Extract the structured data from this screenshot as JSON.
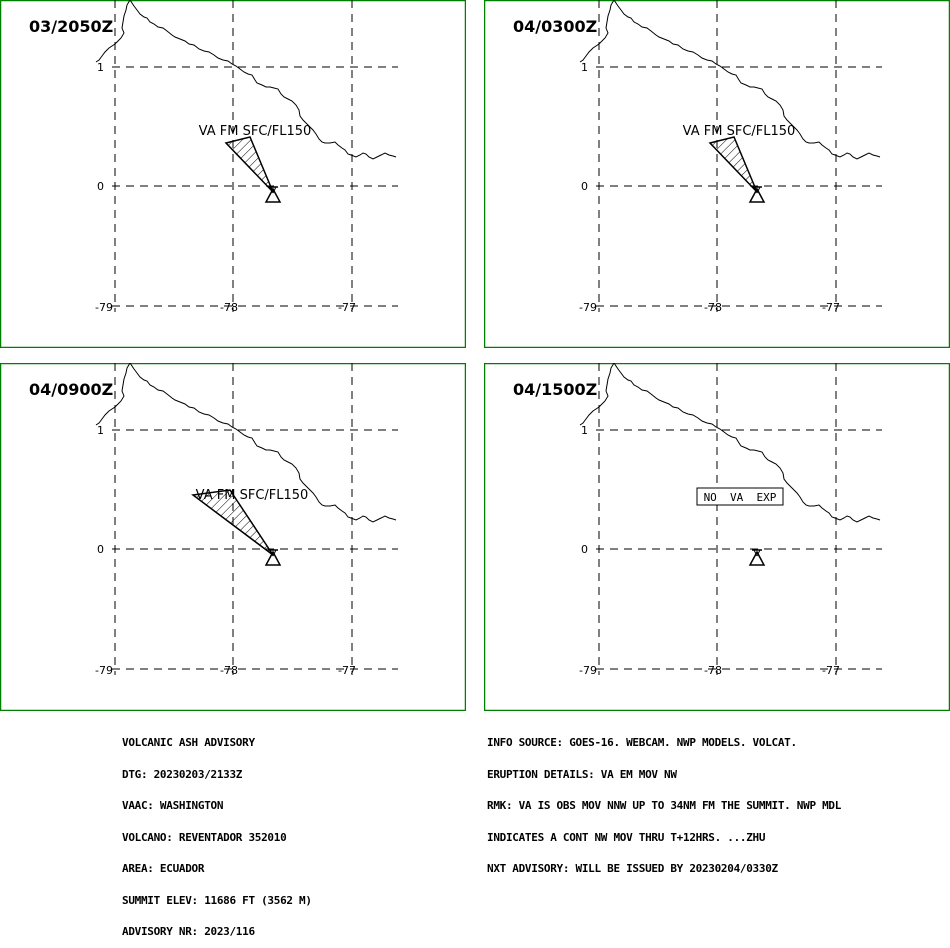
{
  "panels": [
    {
      "time": "03/2050Z",
      "label": "VA FM SFC/FL150",
      "plume": "small"
    },
    {
      "time": "04/0300Z",
      "label": "VA FM SFC/FL150",
      "plume": "small"
    },
    {
      "time": "04/0900Z",
      "label": "VA FM SFC/FL150",
      "plume": "large"
    },
    {
      "time": "04/1500Z",
      "label": "NO VA EXP",
      "plume": "none"
    }
  ],
  "axis_labels": {
    "lat_1": "1",
    "lat_0": "0",
    "lon_w": "-79",
    "lon_mid": "-78",
    "lon_e": "-77"
  },
  "advisory_left": [
    "VOLCANIC ASH ADVISORY",
    "DTG: 20230203/2133Z",
    "VAAC: WASHINGTON",
    "VOLCANO: REVENTADOR 352010",
    "AREA: ECUADOR",
    "SUMMIT ELEV: 11686 FT (3562 M)",
    "ADVISORY NR: 2023/116"
  ],
  "advisory_right": [
    "INFO SOURCE: GOES-16. WEBCAM. NWP MODELS. VOLCAT.",
    "ERUPTION DETAILS: VA EM MOV NW",
    "RMK: VA IS OBS MOV NNW UP TO 34NM FM THE SUMMIT. NWP MDL",
    "INDICATES A CONT NW MOV THRU T+12HRS. ...ZHU",
    "NXT ADVISORY: WILL BE ISSUED BY 20230204/0330Z"
  ],
  "colors": {
    "frame": "#008000",
    "ink": "#000000",
    "background": "#ffffff"
  }
}
